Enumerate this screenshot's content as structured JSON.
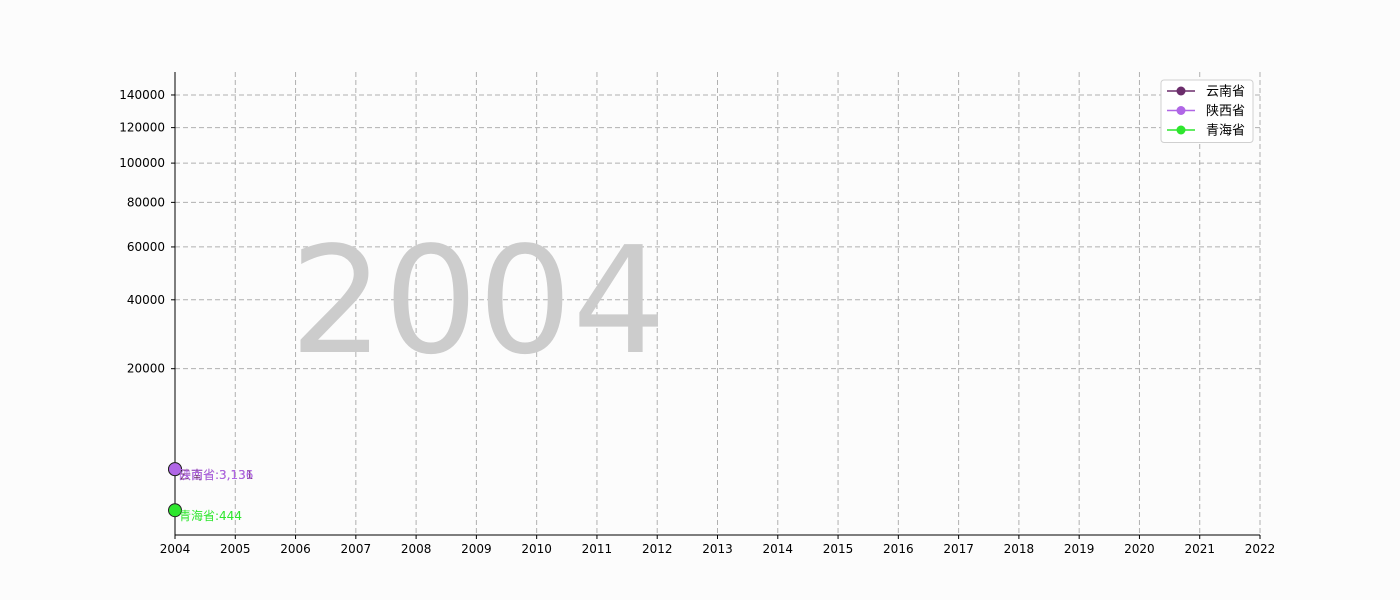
{
  "chart_data": {
    "type": "line",
    "watermark_year": "2004",
    "x": [
      2004
    ],
    "xlim": [
      2004,
      2022
    ],
    "x_ticks": [
      "2004",
      "2005",
      "2006",
      "2007",
      "2008",
      "2009",
      "2010",
      "2011",
      "2012",
      "2013",
      "2014",
      "2015",
      "2016",
      "2017",
      "2018",
      "2019",
      "2020",
      "2021",
      "2022"
    ],
    "ylim": [
      0,
      155000
    ],
    "y_scale": "sqrt",
    "y_ticks": [
      20000,
      40000,
      60000,
      80000,
      100000,
      120000,
      140000
    ],
    "y_tick_labels": [
      "20000",
      "40000",
      "60000",
      "80000",
      "100000",
      "120000",
      "140000"
    ],
    "grid": true,
    "legend_position": "top-right",
    "series": [
      {
        "name": "云南省",
        "color": "#6b2d6b",
        "values": [
          3131
        ],
        "label": "云南省:3,131"
      },
      {
        "name": "陕西省",
        "color": "#b066e6",
        "values": [
          3136
        ],
        "label": "陕西省:3,136"
      },
      {
        "name": "青海省",
        "color": "#2ee62e",
        "values": [
          444
        ],
        "label": "青海省:444"
      }
    ]
  }
}
